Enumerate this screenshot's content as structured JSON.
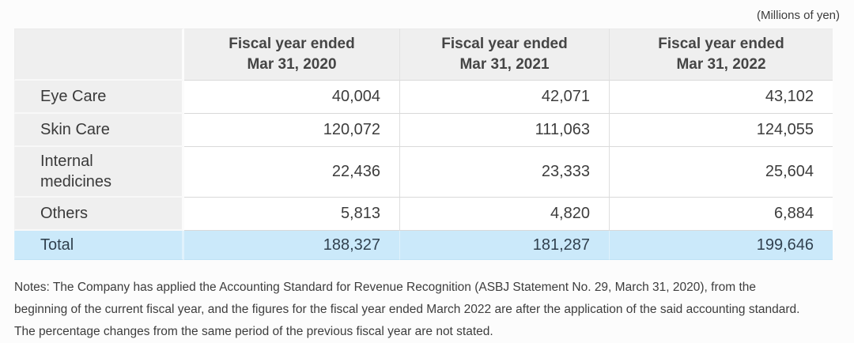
{
  "units_label": "(Millions of yen)",
  "table": {
    "corner": "",
    "columns": [
      {
        "line1": "Fiscal year ended",
        "line2": "Mar 31, 2020"
      },
      {
        "line1": "Fiscal year ended",
        "line2": "Mar 31, 2021"
      },
      {
        "line1": "Fiscal year ended",
        "line2": "Mar 31, 2022"
      }
    ],
    "rows": [
      {
        "label": "Eye Care",
        "values": [
          "40,004",
          "42,071",
          "43,102"
        ]
      },
      {
        "label": "Skin Care",
        "values": [
          "120,072",
          "111,063",
          "124,055"
        ]
      },
      {
        "label": "Internal medicines",
        "values": [
          "22,436",
          "23,333",
          "25,604"
        ]
      },
      {
        "label": "Others",
        "values": [
          "5,813",
          "4,820",
          "6,884"
        ]
      }
    ],
    "total": {
      "label": "Total",
      "values": [
        "188,327",
        "181,287",
        "199,646"
      ]
    }
  },
  "notes_lines": [
    "Notes: The Company has applied the Accounting Standard for Revenue Recognition (ASBJ Statement No. 29, March 31, 2020), from the",
    "beginning of the current fiscal year, and the figures for the fiscal year ended March 2022 are after the application of the said accounting standard.",
    "The percentage changes from the same period of the previous fiscal year are not stated."
  ],
  "colors": {
    "header_bg": "#efefef",
    "label_column_bg": "#efefef",
    "total_row_bg": "#cbe9fa",
    "row_border": "#d9d9d9",
    "text": "#3d3d3d"
  },
  "chart_data": {
    "type": "table",
    "title": "Revenue by segment",
    "unit": "Millions of yen",
    "categories": [
      "Fiscal year ended Mar 31, 2020",
      "Fiscal year ended Mar 31, 2021",
      "Fiscal year ended Mar 31, 2022"
    ],
    "series": [
      {
        "name": "Eye Care",
        "values": [
          40004,
          42071,
          43102
        ]
      },
      {
        "name": "Skin Care",
        "values": [
          120072,
          111063,
          124055
        ]
      },
      {
        "name": "Internal medicines",
        "values": [
          22436,
          23333,
          25604
        ]
      },
      {
        "name": "Others",
        "values": [
          5813,
          4820,
          6884
        ]
      },
      {
        "name": "Total",
        "values": [
          188327,
          181287,
          199646
        ]
      }
    ]
  }
}
